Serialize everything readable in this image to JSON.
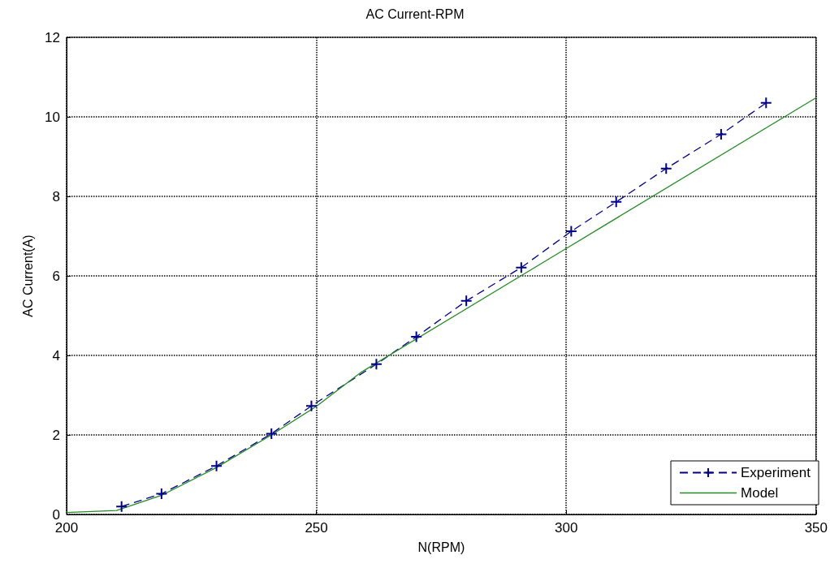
{
  "chart_data": {
    "type": "line",
    "title": "AC Current-RPM",
    "xlabel": "N(RPM)",
    "ylabel": "AC Current(A)",
    "xlim": [
      200,
      350
    ],
    "xticks": [
      200,
      250,
      300,
      350
    ],
    "ylim": [
      0,
      12
    ],
    "yticks": [
      0,
      2,
      4,
      6,
      8,
      10,
      12
    ],
    "grid": true,
    "legend": "bottom right",
    "series": [
      {
        "name": "Experiment",
        "color": "#00008b",
        "marker": "cross",
        "line_style": "dashed",
        "x": [
          211,
          219,
          230,
          241,
          249,
          262,
          270,
          280,
          291,
          301,
          310,
          320,
          331,
          340
        ],
        "values": [
          0.2,
          0.52,
          1.22,
          2.03,
          2.73,
          3.78,
          4.47,
          5.37,
          6.21,
          7.12,
          7.86,
          8.7,
          9.56,
          10.35
        ]
      },
      {
        "name": "Model",
        "color": "#228b22",
        "marker": "none",
        "line_style": "solid",
        "x": [
          200,
          210,
          219,
          230,
          241,
          250,
          259,
          300,
          350
        ],
        "values": [
          0.05,
          0.1,
          0.48,
          1.18,
          2.0,
          2.72,
          3.58,
          6.69,
          10.48
        ]
      }
    ]
  }
}
